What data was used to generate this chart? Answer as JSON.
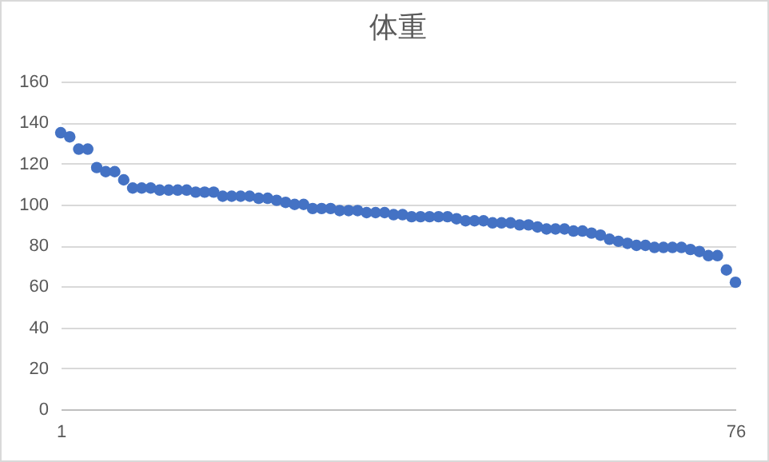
{
  "chart_data": {
    "type": "scatter",
    "title": "体重",
    "x": [
      1,
      2,
      3,
      4,
      5,
      6,
      7,
      8,
      9,
      10,
      11,
      12,
      13,
      14,
      15,
      16,
      17,
      18,
      19,
      20,
      21,
      22,
      23,
      24,
      25,
      26,
      27,
      28,
      29,
      30,
      31,
      32,
      33,
      34,
      35,
      36,
      37,
      38,
      39,
      40,
      41,
      42,
      43,
      44,
      45,
      46,
      47,
      48,
      49,
      50,
      51,
      52,
      53,
      54,
      55,
      56,
      57,
      58,
      59,
      60,
      61,
      62,
      63,
      64,
      65,
      66,
      67,
      68,
      69,
      70,
      71,
      72,
      73,
      74,
      75,
      76
    ],
    "series": [
      {
        "color": "#4472c4",
        "values": [
          135,
          133,
          127,
          127,
          118,
          116,
          116,
          112,
          108,
          108,
          108,
          107,
          107,
          107,
          107,
          106,
          106,
          106,
          104,
          104,
          104,
          104,
          103,
          103,
          102,
          101,
          100,
          100,
          98,
          98,
          98,
          97,
          97,
          97,
          96,
          96,
          96,
          95,
          95,
          94,
          94,
          94,
          94,
          94,
          93,
          92,
          92,
          92,
          91,
          91,
          91,
          90,
          90,
          89,
          88,
          88,
          88,
          87,
          87,
          86,
          85,
          83,
          82,
          81,
          80,
          80,
          79,
          79,
          79,
          79,
          78,
          77,
          75,
          75,
          68,
          62
        ]
      }
    ],
    "xlim": [
      1,
      76
    ],
    "xticks": [
      1,
      76
    ],
    "ylim": [
      0,
      160
    ],
    "yticks": [
      0,
      20,
      40,
      60,
      80,
      100,
      120,
      140,
      160
    ],
    "grid": "y",
    "marker": "circle"
  }
}
